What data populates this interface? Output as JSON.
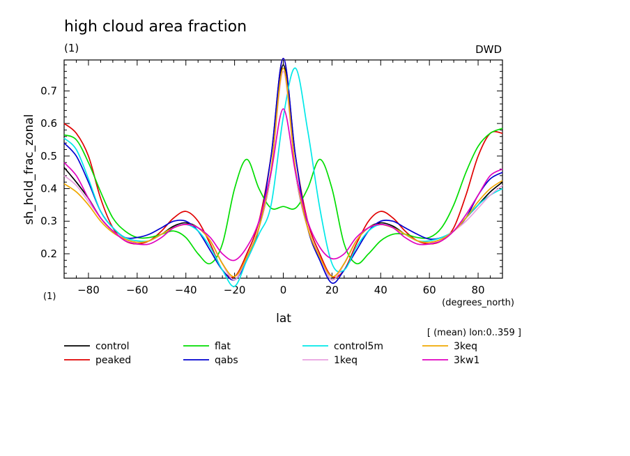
{
  "header": {
    "title": "high cloud area fraction",
    "units_left": "(1)",
    "institution": "DWD"
  },
  "chart_data": {
    "type": "line",
    "title": "high cloud area fraction",
    "xlabel": "lat",
    "xunits": "(degrees_north)",
    "ylabel": "sh_hcld_frac_zonal",
    "yunits": "(1)",
    "xlim": [
      -90,
      90
    ],
    "ylim": [
      0.125,
      0.795
    ],
    "xticks": [
      -80,
      -60,
      -40,
      -20,
      0,
      20,
      40,
      60,
      80
    ],
    "yticks": [
      0.2,
      0.3,
      0.4,
      0.5,
      0.6,
      0.7
    ],
    "grid": false,
    "legend_position": "bottom",
    "annotation": "[ (mean) lon:0..359 ]",
    "x": [
      -90,
      -85,
      -80,
      -75,
      -70,
      -65,
      -60,
      -55,
      -50,
      -45,
      -40,
      -35,
      -30,
      -25,
      -20,
      -15,
      -10,
      -5,
      0,
      5,
      10,
      15,
      20,
      25,
      30,
      35,
      40,
      45,
      50,
      55,
      60,
      65,
      70,
      75,
      80,
      85,
      90
    ],
    "series": [
      {
        "name": "control",
        "color": "#000000",
        "values": [
          0.465,
          0.42,
          0.37,
          0.31,
          0.27,
          0.245,
          0.235,
          0.24,
          0.26,
          0.285,
          0.295,
          0.28,
          0.24,
          0.17,
          0.12,
          0.19,
          0.28,
          0.45,
          0.78,
          0.45,
          0.28,
          0.19,
          0.12,
          0.17,
          0.24,
          0.28,
          0.295,
          0.285,
          0.26,
          0.24,
          0.235,
          0.245,
          0.27,
          0.31,
          0.35,
          0.39,
          0.42
        ]
      },
      {
        "name": "peaked",
        "color": "#e00000",
        "values": [
          0.6,
          0.57,
          0.5,
          0.37,
          0.28,
          0.24,
          0.23,
          0.24,
          0.27,
          0.31,
          0.33,
          0.3,
          0.23,
          0.15,
          0.13,
          0.2,
          0.3,
          0.5,
          0.8,
          0.5,
          0.3,
          0.2,
          0.13,
          0.15,
          0.23,
          0.3,
          0.33,
          0.31,
          0.27,
          0.24,
          0.23,
          0.24,
          0.28,
          0.38,
          0.5,
          0.57,
          0.57
        ]
      },
      {
        "name": "flat",
        "color": "#00dd00",
        "values": [
          0.565,
          0.55,
          0.48,
          0.39,
          0.31,
          0.27,
          0.25,
          0.25,
          0.26,
          0.27,
          0.25,
          0.2,
          0.17,
          0.23,
          0.4,
          0.49,
          0.4,
          0.34,
          0.345,
          0.34,
          0.4,
          0.49,
          0.4,
          0.23,
          0.17,
          0.2,
          0.24,
          0.26,
          0.26,
          0.25,
          0.25,
          0.28,
          0.35,
          0.45,
          0.53,
          0.57,
          0.585
        ]
      },
      {
        "name": "qabs",
        "color": "#0000d0",
        "values": [
          0.54,
          0.5,
          0.42,
          0.33,
          0.28,
          0.25,
          0.25,
          0.26,
          0.28,
          0.3,
          0.3,
          0.27,
          0.21,
          0.15,
          0.12,
          0.18,
          0.28,
          0.5,
          0.8,
          0.5,
          0.28,
          0.18,
          0.11,
          0.15,
          0.21,
          0.27,
          0.3,
          0.3,
          0.28,
          0.26,
          0.245,
          0.25,
          0.27,
          0.31,
          0.38,
          0.43,
          0.45
        ]
      },
      {
        "name": "control5m",
        "color": "#00e8e8",
        "values": [
          0.555,
          0.52,
          0.43,
          0.33,
          0.28,
          0.25,
          0.24,
          0.24,
          0.26,
          0.28,
          0.29,
          0.27,
          0.22,
          0.15,
          0.1,
          0.18,
          0.26,
          0.35,
          0.62,
          0.77,
          0.58,
          0.34,
          0.17,
          0.15,
          0.22,
          0.27,
          0.29,
          0.28,
          0.26,
          0.24,
          0.24,
          0.25,
          0.27,
          0.31,
          0.35,
          0.38,
          0.4
        ]
      },
      {
        "name": "1keq",
        "color": "#e8a0e0",
        "values": [
          0.44,
          0.41,
          0.36,
          0.31,
          0.27,
          0.245,
          0.235,
          0.24,
          0.26,
          0.28,
          0.29,
          0.28,
          0.24,
          0.17,
          0.12,
          0.19,
          0.28,
          0.45,
          0.76,
          0.45,
          0.28,
          0.19,
          0.12,
          0.17,
          0.24,
          0.28,
          0.29,
          0.28,
          0.26,
          0.24,
          0.235,
          0.245,
          0.27,
          0.3,
          0.34,
          0.38,
          0.41
        ]
      },
      {
        "name": "3keq",
        "color": "#f0a800",
        "values": [
          0.415,
          0.39,
          0.35,
          0.3,
          0.265,
          0.245,
          0.235,
          0.24,
          0.26,
          0.28,
          0.29,
          0.28,
          0.24,
          0.17,
          0.13,
          0.19,
          0.28,
          0.46,
          0.77,
          0.46,
          0.28,
          0.19,
          0.13,
          0.17,
          0.24,
          0.28,
          0.29,
          0.28,
          0.26,
          0.24,
          0.235,
          0.245,
          0.27,
          0.31,
          0.36,
          0.4,
          0.425
        ]
      },
      {
        "name": "3kw1",
        "color": "#e000c0",
        "values": [
          0.48,
          0.44,
          0.37,
          0.31,
          0.27,
          0.24,
          0.23,
          0.23,
          0.25,
          0.28,
          0.29,
          0.28,
          0.25,
          0.2,
          0.18,
          0.22,
          0.3,
          0.45,
          0.645,
          0.45,
          0.3,
          0.22,
          0.185,
          0.2,
          0.25,
          0.28,
          0.29,
          0.28,
          0.25,
          0.23,
          0.23,
          0.24,
          0.27,
          0.32,
          0.38,
          0.44,
          0.46
        ]
      }
    ]
  }
}
